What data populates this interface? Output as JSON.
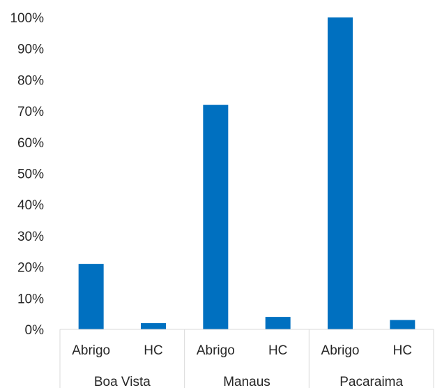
{
  "chart_data": {
    "type": "bar",
    "groups": [
      {
        "name": "Boa Vista",
        "categories": [
          "Abrigo",
          "HC"
        ],
        "values": [
          21,
          2
        ]
      },
      {
        "name": "Manaus",
        "categories": [
          "Abrigo",
          "HC"
        ],
        "values": [
          72,
          4
        ]
      },
      {
        "name": "Pacaraima",
        "categories": [
          "Abrigo",
          "HC"
        ],
        "values": [
          100,
          3
        ]
      }
    ],
    "ylim": [
      0,
      100
    ],
    "yticks": [
      "0%",
      "10%",
      "20%",
      "30%",
      "40%",
      "50%",
      "60%",
      "70%",
      "80%",
      "90%",
      "100%"
    ],
    "grid": false,
    "bar_color": "#0070C0",
    "axis_color": "#D9D9D9"
  }
}
